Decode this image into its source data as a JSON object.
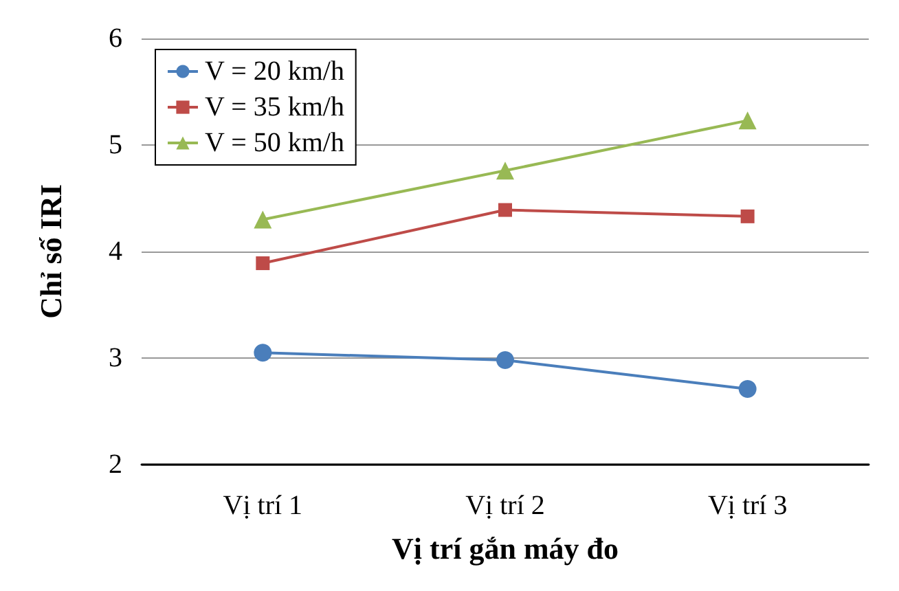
{
  "chart_data": {
    "type": "line",
    "xlabel": "Vị trí gắn máy đo",
    "ylabel": "Chỉ số IRI",
    "categories": [
      "Vị trí 1",
      "Vị trí 2",
      "Vị trí 3"
    ],
    "series": [
      {
        "name": "V = 20 km/h",
        "color": "#4a7ebb",
        "marker": "circle",
        "values": [
          3.05,
          2.98,
          2.71
        ]
      },
      {
        "name": "V = 35 km/h",
        "color": "#be4b48",
        "marker": "square",
        "values": [
          3.89,
          4.39,
          4.33
        ]
      },
      {
        "name": "V = 50 km/h",
        "color": "#98b954",
        "marker": "triangle",
        "values": [
          4.3,
          4.76,
          5.23
        ]
      }
    ],
    "ylim": [
      2,
      6
    ],
    "yticks": [
      2,
      3,
      4,
      5,
      6
    ],
    "grid": "y",
    "legend": "top left",
    "line_style": "solid"
  }
}
